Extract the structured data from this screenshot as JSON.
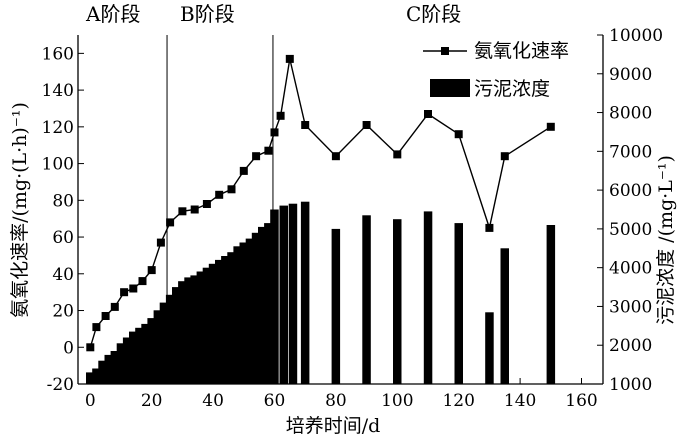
{
  "chart_data": {
    "type": "bar+line",
    "xlabel": "培养时间/d",
    "ylabel_left": "氨氧化速率/(mg·(L·h)⁻¹)",
    "ylabel_right": "污泥浓度 /(mg·L⁻¹)",
    "xlim": [
      -4,
      167
    ],
    "ylim_left": [
      -20,
      170
    ],
    "ylim_right": [
      1000,
      10000
    ],
    "x_ticks": [
      "0",
      "20",
      "40",
      "60",
      "80",
      "100",
      "120",
      "140",
      "160"
    ],
    "y_left_ticks": [
      "-20",
      "0",
      "20",
      "40",
      "60",
      "80",
      "100",
      "120",
      "140",
      "160"
    ],
    "y_right_ticks": [
      "1000",
      "2000",
      "3000",
      "4000",
      "5000",
      "6000",
      "7000",
      "8000",
      "9000",
      "10000"
    ],
    "stages": [
      {
        "label": "A阶段",
        "end": 25
      },
      {
        "label": "B阶段",
        "end": 59.5
      },
      {
        "label": "C阶段",
        "end": null
      }
    ],
    "legend": [
      {
        "label": "氨氧化速率",
        "kind": "line-square"
      },
      {
        "label": "污泥浓度",
        "kind": "bar"
      }
    ],
    "series": [
      {
        "name": "氨氧化速率",
        "axis": "left",
        "x": [
          0,
          2,
          5,
          8,
          11,
          14,
          17,
          20,
          23,
          26,
          30,
          34,
          38,
          42,
          46,
          50,
          54,
          58,
          60,
          62,
          65,
          70,
          80,
          90,
          100,
          110,
          120,
          130,
          135,
          150
        ],
        "values": [
          0,
          11,
          17,
          22,
          30,
          32,
          36,
          42,
          57,
          68,
          74,
          75,
          78,
          83,
          86,
          96,
          104,
          107,
          117,
          126,
          157,
          121,
          104,
          121,
          105,
          127,
          116,
          65,
          104,
          120
        ]
      },
      {
        "name": "污泥浓度",
        "axis": "right",
        "x": [
          0,
          2,
          4,
          6,
          8,
          10,
          12,
          14,
          16,
          18,
          20,
          22,
          24,
          26,
          28,
          30,
          32,
          34,
          36,
          38,
          40,
          42,
          44,
          46,
          48,
          50,
          52,
          54,
          56,
          58,
          60,
          63,
          66,
          70,
          80,
          90,
          100,
          110,
          120,
          130,
          135,
          150
        ],
        "values": [
          1300,
          1400,
          1600,
          1750,
          1850,
          2050,
          2200,
          2350,
          2450,
          2550,
          2700,
          2900,
          3100,
          3300,
          3500,
          3650,
          3750,
          3800,
          3900,
          4000,
          4100,
          4200,
          4300,
          4400,
          4550,
          4650,
          4750,
          4900,
          5050,
          5150,
          5500,
          5600,
          5650,
          5700,
          5000,
          5350,
          5250,
          5450,
          5150,
          2850,
          4500,
          5100
        ]
      }
    ]
  }
}
